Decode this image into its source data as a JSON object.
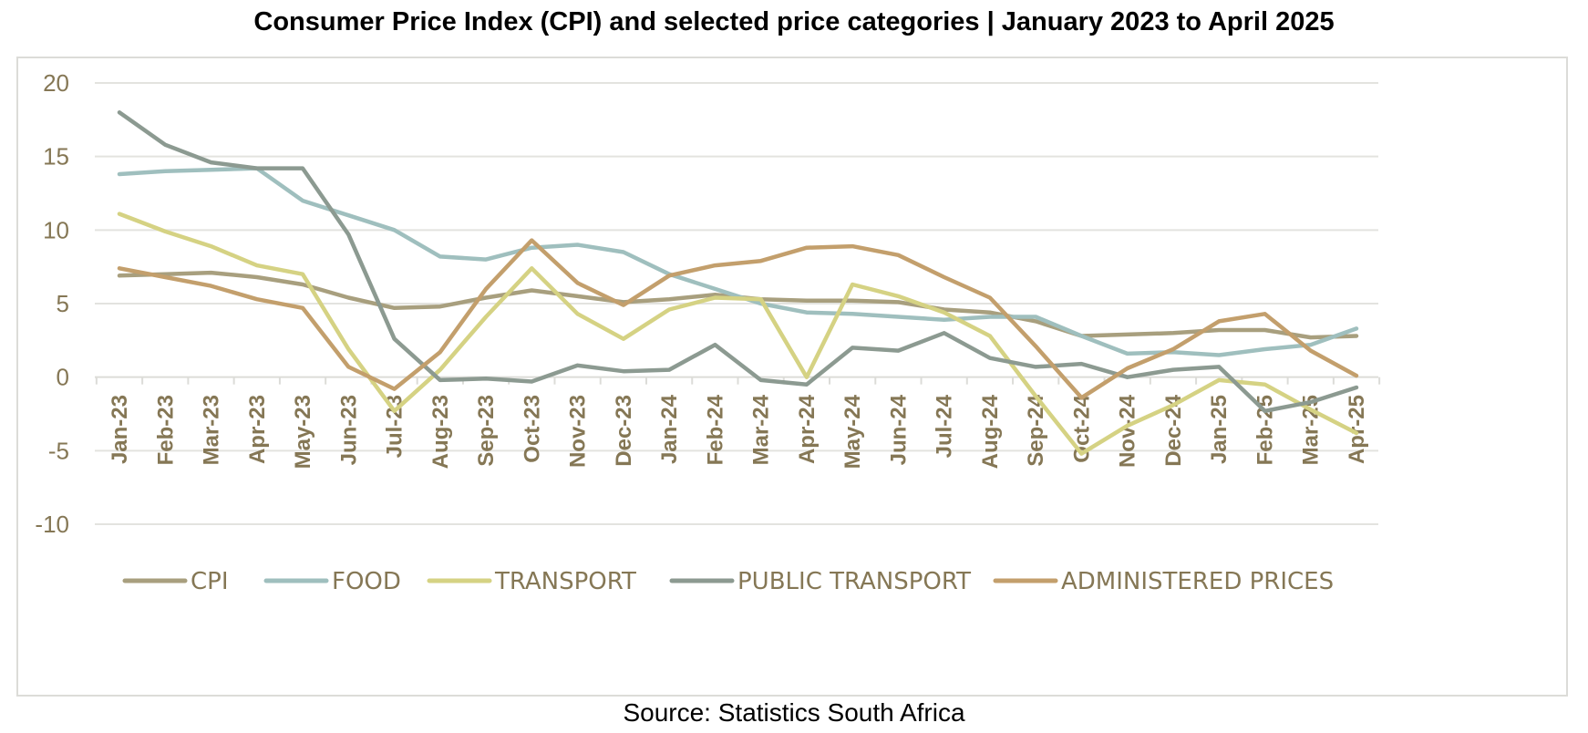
{
  "chart_data": {
    "type": "line",
    "title": "Consumer Price Index (CPI) and selected price categories | January 2023 to April 2025",
    "source": "Source: Statistics South Africa",
    "xlabel": "",
    "ylabel": "",
    "ylim": [
      -10,
      20
    ],
    "yticks": [
      20,
      15,
      10,
      5,
      0,
      -5,
      -10
    ],
    "grid": true,
    "legend_position": "bottom",
    "categories": [
      "Jan-23",
      "Feb-23",
      "Mar-23",
      "Apr-23",
      "May-23",
      "Jun-23",
      "Jul-23",
      "Aug-23",
      "Sep-23",
      "Oct-23",
      "Nov-23",
      "Dec-23",
      "Jan-24",
      "Feb-24",
      "Mar-24",
      "Apr-24",
      "May-24",
      "Jun-24",
      "Jul-24",
      "Aug-24",
      "Sep-24",
      "Oct-24",
      "Nov-24",
      "Dec-24",
      "Jan-25",
      "Feb-25",
      "Mar-25",
      "Apr-25"
    ],
    "series": [
      {
        "name": "CPI",
        "color": "#a89f7e",
        "values": [
          6.9,
          7.0,
          7.1,
          6.8,
          6.3,
          5.4,
          4.7,
          4.8,
          5.4,
          5.9,
          5.5,
          5.1,
          5.3,
          5.6,
          5.3,
          5.2,
          5.2,
          5.1,
          4.6,
          4.4,
          3.8,
          2.8,
          2.9,
          3.0,
          3.2,
          3.2,
          2.7,
          2.8
        ]
      },
      {
        "name": "FOOD",
        "color": "#9fbfbe",
        "values": [
          13.8,
          14.0,
          14.1,
          14.2,
          12.0,
          11.0,
          10.0,
          8.2,
          8.0,
          8.8,
          9.0,
          8.5,
          7.0,
          6.0,
          5.0,
          4.4,
          4.3,
          4.1,
          3.9,
          4.1,
          4.1,
          2.8,
          1.6,
          1.7,
          1.5,
          1.9,
          2.2,
          3.3
        ]
      },
      {
        "name": "TRANSPORT",
        "color": "#d5d283",
        "values": [
          11.1,
          9.9,
          8.9,
          7.6,
          7.0,
          1.9,
          -2.3,
          0.5,
          4.1,
          7.4,
          4.3,
          2.6,
          4.6,
          5.4,
          5.3,
          0.0,
          6.3,
          5.5,
          4.4,
          2.8,
          -1.3,
          -5.2,
          -3.3,
          -1.9,
          -0.2,
          -0.5,
          -2.2,
          -3.8
        ]
      },
      {
        "name": "PUBLIC TRANSPORT",
        "color": "#8c9a91",
        "values": [
          18.0,
          15.8,
          14.6,
          14.2,
          14.2,
          9.7,
          2.6,
          -0.2,
          -0.1,
          -0.3,
          0.8,
          0.4,
          0.5,
          2.2,
          -0.2,
          -0.5,
          2.0,
          1.8,
          3.0,
          1.3,
          0.7,
          0.9,
          0.0,
          0.5,
          0.7,
          -2.3,
          -1.7,
          -0.7
        ]
      },
      {
        "name": "ADMINISTERED PRICES",
        "color": "#c39f6c",
        "values": [
          7.4,
          6.8,
          6.2,
          5.3,
          4.7,
          0.7,
          -0.8,
          1.7,
          6.0,
          9.3,
          6.4,
          4.9,
          6.9,
          7.6,
          7.9,
          8.8,
          8.9,
          8.3,
          6.8,
          5.4,
          2.1,
          -1.4,
          0.6,
          1.9,
          3.8,
          4.3,
          1.8,
          0.1
        ]
      }
    ]
  }
}
